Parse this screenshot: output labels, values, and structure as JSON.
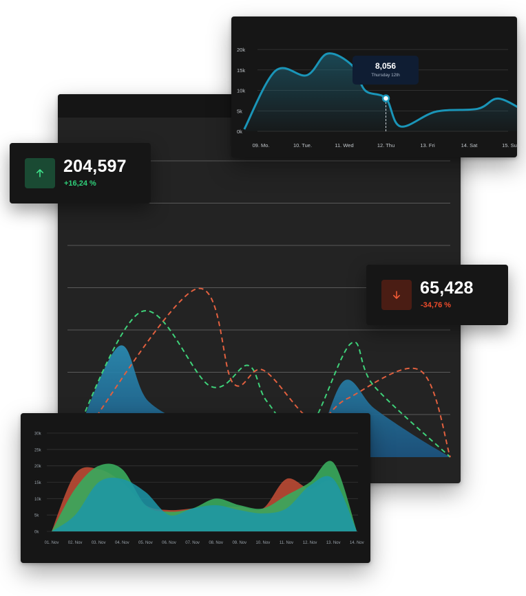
{
  "colors": {
    "teal": "#1a8fb0",
    "blue_area": "#2f8fbf",
    "green": "#3fd37a",
    "red": "#e2603f",
    "positive": "#2fd07a",
    "negative": "#ef4b2b",
    "panel_bg": "#181818"
  },
  "kpis": {
    "up": {
      "value": "204,597",
      "delta": "+16,24 %",
      "icon": "arrow-up-icon"
    },
    "down": {
      "value": "65,428",
      "delta": "-34,76 %",
      "icon": "arrow-down-icon"
    }
  },
  "tooltip": {
    "value": "8,056",
    "label": "Thursday 12th"
  },
  "chart_data": [
    {
      "type": "area",
      "name": "top-line-chart",
      "categories": [
        "09. Mo.",
        "10. Tue.",
        "11. Wed",
        "12. Thu",
        "13. Fri",
        "14. Sat",
        "15. Sun"
      ],
      "y_ticks": [
        "0k",
        "5k",
        "10k",
        "15k",
        "20k"
      ],
      "ylim": [
        0,
        20000
      ],
      "grid": true,
      "curve": [
        [
          -0.4,
          500
        ],
        [
          0.35,
          14800
        ],
        [
          1.1,
          13700
        ],
        [
          1.6,
          19000
        ],
        [
          2.2,
          16000
        ],
        [
          2.5,
          10000
        ],
        [
          3.0,
          8056
        ],
        [
          3.35,
          1200
        ],
        [
          4.2,
          4800
        ],
        [
          5.2,
          5500
        ],
        [
          5.7,
          8000
        ],
        [
          6.35,
          4800
        ]
      ],
      "highlight": {
        "x": "12. Thu",
        "y": 8056
      }
    },
    {
      "type": "area",
      "name": "main-background-chart",
      "grid": true,
      "series": [
        {
          "style": "filled-area",
          "points": [
            [
              0.0,
              0.0
            ],
            [
              0.13,
              0.7
            ],
            [
              0.21,
              0.35
            ],
            [
              0.37,
              0.15
            ],
            [
              0.52,
              0.0
            ],
            [
              0.63,
              0.0
            ],
            [
              0.72,
              0.48
            ],
            [
              0.8,
              0.31
            ],
            [
              0.91,
              0.13
            ],
            [
              1.0,
              0.0
            ]
          ]
        },
        {
          "style": "dashed-green",
          "points": [
            [
              0.0,
              0.05
            ],
            [
              0.19,
              0.92
            ],
            [
              0.37,
              0.45
            ],
            [
              0.47,
              0.58
            ],
            [
              0.52,
              0.35
            ],
            [
              0.62,
              0.15
            ],
            [
              0.74,
              0.72
            ],
            [
              0.8,
              0.45
            ],
            [
              1.0,
              0.0
            ]
          ]
        },
        {
          "style": "dashed-red",
          "points": [
            [
              0.0,
              0.0
            ],
            [
              0.33,
              1.06
            ],
            [
              0.43,
              0.47
            ],
            [
              0.51,
              0.55
            ],
            [
              0.64,
              0.23
            ],
            [
              0.73,
              0.37
            ],
            [
              0.92,
              0.55
            ],
            [
              1.0,
              0.0
            ]
          ]
        }
      ]
    },
    {
      "type": "area",
      "name": "bottom-stacked-chart",
      "categories": [
        "01. Nov",
        "02. Nov",
        "03. Nov",
        "04. Nov",
        "05. Nov",
        "06. Nov",
        "07. Nov",
        "08. Nov",
        "09. Nov",
        "10. Nov",
        "11. Nov",
        "12. Nov",
        "13. Nov",
        "14. Nov"
      ],
      "y_ticks": [
        "0k",
        "5k",
        "10k",
        "15k",
        "20k",
        "25k",
        "30k"
      ],
      "ylim": [
        0,
        30000
      ],
      "grid": true,
      "series": [
        {
          "color": "red",
          "points": [
            [
              0,
              0
            ],
            [
              1,
              17500
            ],
            [
              2,
              19000
            ],
            [
              3,
              15000
            ],
            [
              4,
              8000
            ],
            [
              5,
              6500
            ],
            [
              6,
              7000
            ],
            [
              7,
              7500
            ],
            [
              8,
              7500
            ],
            [
              9,
              7000
            ],
            [
              10,
              16000
            ],
            [
              11,
              13000
            ],
            [
              12,
              15000
            ],
            [
              13,
              0
            ]
          ]
        },
        {
          "color": "green",
          "points": [
            [
              0,
              0
            ],
            [
              1,
              13000
            ],
            [
              2,
              20000
            ],
            [
              3,
              19000
            ],
            [
              4,
              8000
            ],
            [
              5,
              6000
            ],
            [
              6,
              7000
            ],
            [
              7,
              10000
            ],
            [
              8,
              8000
            ],
            [
              9,
              7000
            ],
            [
              10,
              11000
            ],
            [
              11,
              15000
            ],
            [
              12,
              21000
            ],
            [
              13,
              0
            ]
          ]
        },
        {
          "color": "teal",
          "points": [
            [
              0,
              0
            ],
            [
              1,
              5000
            ],
            [
              2,
              15000
            ],
            [
              3,
              16000
            ],
            [
              4,
              12000
            ],
            [
              5,
              5000
            ],
            [
              6,
              7000
            ],
            [
              7,
              8000
            ],
            [
              8,
              6500
            ],
            [
              9,
              5500
            ],
            [
              10,
              7000
            ],
            [
              11,
              14000
            ],
            [
              12,
              16000
            ],
            [
              13,
              0
            ]
          ]
        }
      ]
    }
  ]
}
